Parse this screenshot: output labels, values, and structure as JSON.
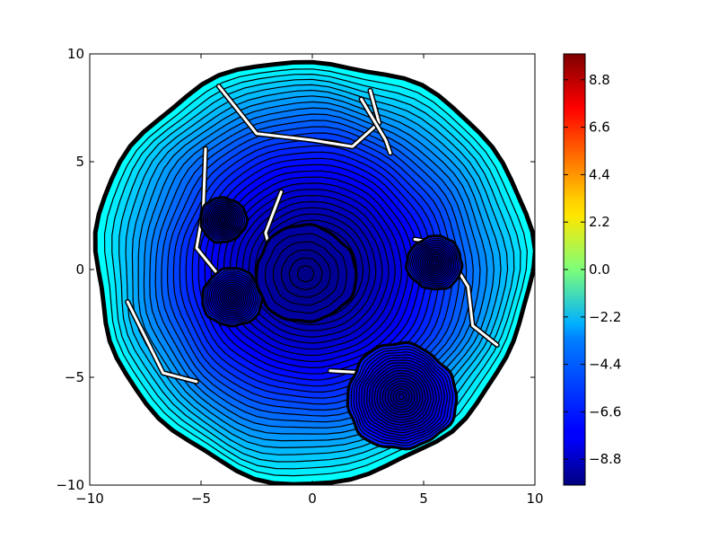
{
  "chart_data": {
    "type": "contour",
    "title": "",
    "xlabel": "",
    "ylabel": "",
    "xlim": [
      -10,
      10
    ],
    "ylim": [
      -10,
      10
    ],
    "x_ticks": [
      -10,
      -5,
      0,
      5,
      10
    ],
    "y_ticks": [
      -10,
      -5,
      0,
      5,
      10
    ],
    "x_tick_labels": [
      "−10",
      "−5",
      "0",
      "5",
      "10"
    ],
    "y_tick_labels": [
      "−10",
      "−5",
      "0",
      "5",
      "10"
    ],
    "grid": false,
    "colormap": "jet",
    "colorbar": {
      "range": [
        -10,
        10
      ],
      "ticks": [
        -8.8,
        -6.6,
        -4.4,
        -2.2,
        0.0,
        2.2,
        4.4,
        6.6,
        8.8
      ],
      "tick_labels": [
        "−8.8",
        "−6.6",
        "−4.4",
        "−2.2",
        "0.0",
        "2.2",
        "4.4",
        "6.6",
        "8.8"
      ]
    },
    "field": {
      "shape": "approximately circular region",
      "center": [
        0,
        0
      ],
      "radius": 9.7,
      "min_value_at_center": -10,
      "edge_value": -2.5,
      "fragments": [
        {
          "center": [
            -4.0,
            2.3
          ],
          "radius": 1.0
        },
        {
          "center": [
            4.0,
            -5.9
          ],
          "radius": 2.4
        },
        {
          "center": [
            -3.6,
            -1.3
          ],
          "radius": 1.3
        },
        {
          "center": [
            5.5,
            0.3
          ],
          "radius": 1.2
        }
      ]
    }
  }
}
